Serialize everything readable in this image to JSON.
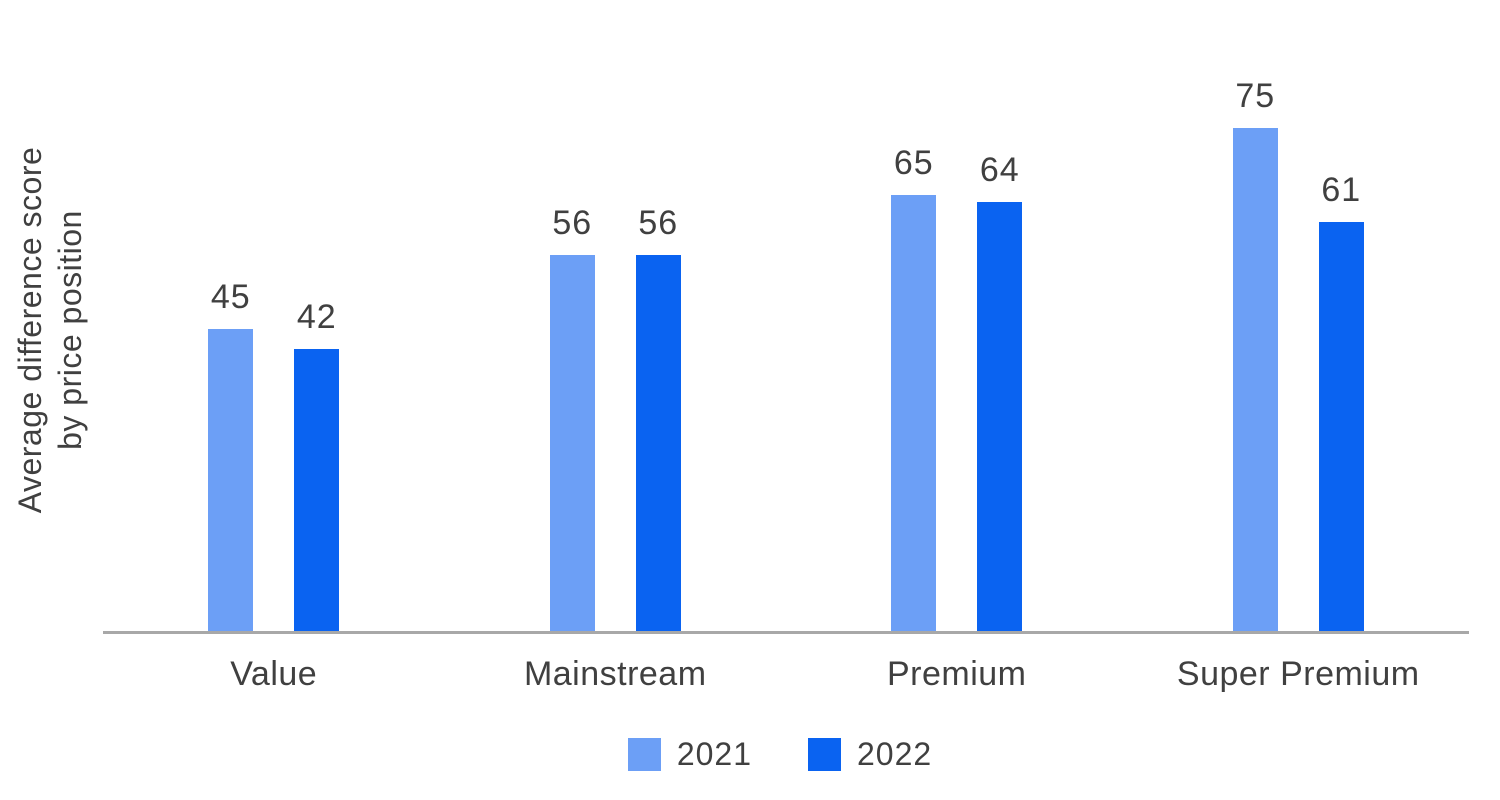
{
  "chart_data": {
    "type": "bar",
    "title": "",
    "ylabel": "Average difference score\nby price position",
    "xlabel": "",
    "categories": [
      "Value",
      "Mainstream",
      "Premium",
      "Super Premium"
    ],
    "series": [
      {
        "name": "2021",
        "color": "#6C9FF6",
        "values": [
          45,
          56,
          65,
          75
        ]
      },
      {
        "name": "2022",
        "color": "#0A63F1",
        "values": [
          42,
          56,
          64,
          61
        ]
      }
    ],
    "value_labels_shown": true,
    "ylim": [
      0,
      80
    ],
    "grid": false,
    "legend_position": "bottom",
    "axis_line_color": "#A8A8A8",
    "text_color": "#404040"
  }
}
